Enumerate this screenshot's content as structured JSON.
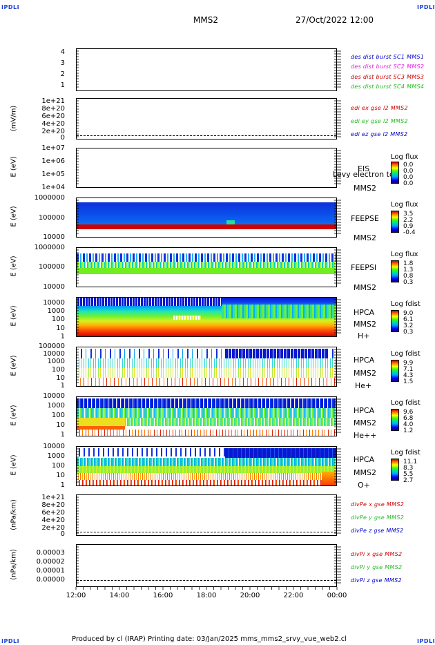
{
  "corner_label": "IPDLI",
  "header": {
    "spacecraft": "MMS2",
    "datetime": "27/Oct/2022 12:00"
  },
  "footer": {
    "text": "Produced by cl (IRAP)   Printing date: 03/Jan/2025   mms_mms2_srvy_vue_web2.cl"
  },
  "colors": {
    "red": "#cc0000",
    "green": "#22bb22",
    "blue": "#0000cc",
    "magenta": "#e020e0",
    "label_blue": "#1a3fd0"
  },
  "chart_data": {
    "type": "heatmap",
    "x_axis": {
      "ticks": [
        "12:00",
        "14:00",
        "16:00",
        "18:00",
        "20:00",
        "22:00",
        "00:00"
      ]
    },
    "panels": [
      {
        "id": "burst",
        "ylabel": "",
        "yticks": [
          "4",
          "3",
          "2",
          "1"
        ],
        "legend": [
          {
            "text": "des dist burst SC1 MMS1",
            "color": "blue"
          },
          {
            "text": "des dist burst SC2 MMS2",
            "color": "magenta"
          },
          {
            "text": "des dist burst SC3 MMS3",
            "color": "red"
          },
          {
            "text": "des dist burst SC4 MMS4",
            "color": "green"
          }
        ]
      },
      {
        "id": "edi",
        "ylabel": "(mV/m)",
        "yticks": [
          "1e+21",
          "8e+20",
          "6e+20",
          "4e+20",
          "2e+20",
          "0"
        ],
        "legend": [
          {
            "text": "edi ex gse l2 MMS2",
            "color": "red"
          },
          {
            "text": "edi ey gse l2 MMS2",
            "color": "green"
          },
          {
            "text": "edi ez gse l2 MMS2",
            "color": "blue"
          }
        ]
      },
      {
        "id": "eis",
        "ylabel": "E (eV)",
        "yticks": [
          "1e+07",
          "1e+06",
          "1e+05",
          "1e+04"
        ],
        "right_labels": [
          "EIS",
          "MMS2"
        ],
        "overlay_text": "Levy electron to",
        "colorbar": {
          "title": "Log flux",
          "ticks": [
            "0.0",
            "0.0",
            "0.0",
            "0.0"
          ]
        }
      },
      {
        "id": "feepse",
        "ylabel": "E (eV)",
        "yticks": [
          "1000000",
          "100000",
          "10000"
        ],
        "right_labels": [
          "FEEPSE",
          "MMS2"
        ],
        "colorbar": {
          "title": "Log flux",
          "ticks": [
            "3.5",
            "2.2",
            "0.9",
            "-0.4"
          ]
        }
      },
      {
        "id": "feepsi",
        "ylabel": "E (eV)",
        "yticks": [
          "1000000",
          "100000",
          "10000"
        ],
        "right_labels": [
          "FEEPSI",
          "MMS2"
        ],
        "colorbar": {
          "title": "Log flux",
          "ticks": [
            "1.8",
            "1.3",
            "0.8",
            "0.3"
          ]
        }
      },
      {
        "id": "hpca_h",
        "ylabel": "E (eV)",
        "yticks": [
          "10000",
          "1000",
          "100",
          "10",
          "1"
        ],
        "right_labels": [
          "HPCA",
          "MMS2",
          "H+"
        ],
        "colorbar": {
          "title": "Log fdist",
          "ticks": [
            "9.0",
            "6.1",
            "3.2",
            "0.3"
          ]
        }
      },
      {
        "id": "hpca_he",
        "ylabel": "E (eV)",
        "yticks": [
          "100000",
          "10000",
          "1000",
          "100",
          "10",
          "1"
        ],
        "right_labels": [
          "HPCA",
          "MMS2",
          "He+"
        ],
        "colorbar": {
          "title": "Log fdist",
          "ticks": [
            "9.9",
            "7.1",
            "4.3",
            "1.5"
          ]
        }
      },
      {
        "id": "hpca_hepp",
        "ylabel": "E (eV)",
        "yticks": [
          "10000",
          "1000",
          "100",
          "10",
          "1"
        ],
        "right_labels": [
          "HPCA",
          "MMS2",
          "He++"
        ],
        "colorbar": {
          "title": "Log fdist",
          "ticks": [
            "9.6",
            "6.8",
            "4.0",
            "1.2"
          ]
        }
      },
      {
        "id": "hpca_o",
        "ylabel": "E (eV)",
        "yticks": [
          "10000",
          "1000",
          "100",
          "10",
          "1"
        ],
        "right_labels": [
          "HPCA",
          "MMS2",
          "O+"
        ],
        "colorbar": {
          "title": "Log fdist",
          "ticks": [
            "11.1",
            "8.3",
            "5.5",
            "2.7"
          ]
        }
      },
      {
        "id": "divpe",
        "ylabel": "(nPa/km)",
        "yticks": [
          "1e+21",
          "8e+20",
          "6e+20",
          "4e+20",
          "2e+20",
          "0"
        ],
        "legend": [
          {
            "text": "divPe x gse MMS2",
            "color": "red"
          },
          {
            "text": "divPe y gse MMS2",
            "color": "green"
          },
          {
            "text": "divPe z gse MMS2",
            "color": "blue"
          }
        ]
      },
      {
        "id": "divpi",
        "ylabel": "(nPa/km)",
        "yticks": [
          "0.00003",
          "0.00002",
          "0.00001",
          "0.00000"
        ],
        "legend": [
          {
            "text": "divPi x gse MMS2",
            "color": "red"
          },
          {
            "text": "divPi y gse MMS2",
            "color": "green"
          },
          {
            "text": "divPi z gse MMS2",
            "color": "blue"
          }
        ]
      }
    ]
  }
}
